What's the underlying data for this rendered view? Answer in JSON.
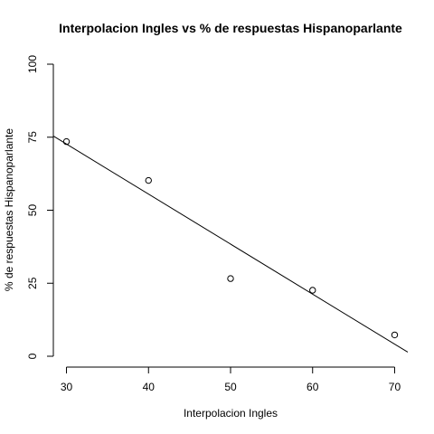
{
  "chart_data": {
    "type": "scatter",
    "title": "Interpolacion Ingles vs % de respuestas Hispanoparlante",
    "xlabel": "Interpolacion Ingles",
    "ylabel": "% de respuestas Hispanoparlante",
    "xlim": [
      28.4,
      71.6
    ],
    "ylim": [
      0,
      100
    ],
    "x_ticks": [
      30,
      40,
      50,
      60,
      70
    ],
    "y_ticks": [
      0,
      25,
      50,
      75,
      100
    ],
    "points": [
      {
        "x": 30,
        "y": 73.5
      },
      {
        "x": 40,
        "y": 60.2
      },
      {
        "x": 50,
        "y": 26.6
      },
      {
        "x": 60,
        "y": 22.6
      },
      {
        "x": 70,
        "y": 7.3
      }
    ],
    "fit_line": {
      "x0": 28.4,
      "y0": 75.4,
      "x1": 71.6,
      "y1": 1.4
    }
  }
}
